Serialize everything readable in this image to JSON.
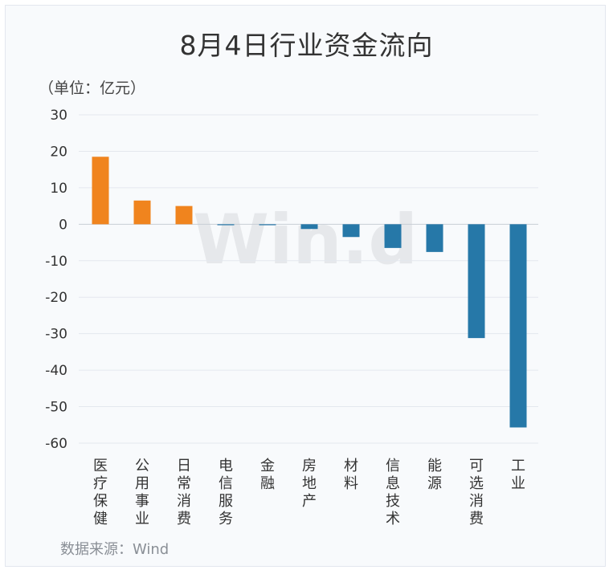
{
  "chart_data": {
    "type": "bar",
    "title": "8月4日行业资金流向",
    "unit_label": "（单位：亿元）",
    "source": "数据来源：Wind",
    "watermark": "Win.d",
    "categories": [
      "医疗保健",
      "公用事业",
      "日常消费",
      "电信服务",
      "金融",
      "房地产",
      "材料",
      "信息技术",
      "能源",
      "可选消费",
      "工业"
    ],
    "values": [
      18.5,
      6.5,
      5.0,
      -0.2,
      -0.2,
      -1.3,
      -3.5,
      -6.5,
      -7.6,
      -31.2,
      -55.7
    ],
    "ylim": [
      -60,
      30
    ],
    "yticks": [
      30,
      20,
      10,
      0,
      -10,
      -20,
      -30,
      -40,
      -50,
      -60
    ],
    "grid": true,
    "legend": "none",
    "colors": {
      "positive": "#f0841e",
      "negative": "#2678a8",
      "grid": "#e4e8ee",
      "zero_line": "#c9ced6"
    }
  }
}
